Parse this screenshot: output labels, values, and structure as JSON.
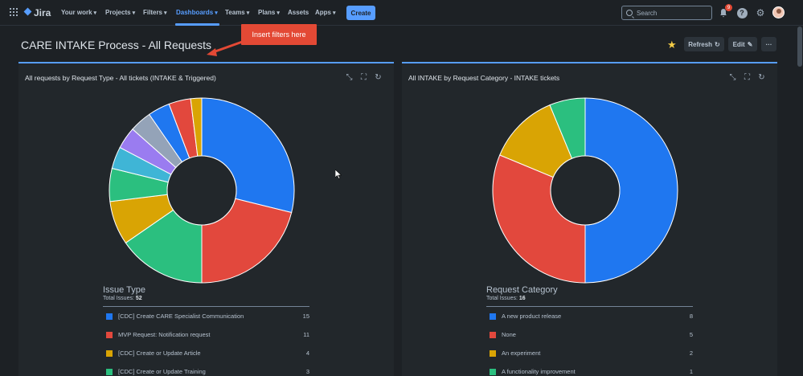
{
  "nav": {
    "logo": "Jira",
    "items": [
      {
        "label": "Your work",
        "chevron": true
      },
      {
        "label": "Projects",
        "chevron": true
      },
      {
        "label": "Filters",
        "chevron": true
      },
      {
        "label": "Dashboards",
        "chevron": true,
        "active": true
      },
      {
        "label": "Teams",
        "chevron": true
      },
      {
        "label": "Plans",
        "chevron": true
      },
      {
        "label": "Assets",
        "chevron": false
      },
      {
        "label": "Apps",
        "chevron": true
      }
    ],
    "create_label": "Create",
    "search_placeholder": "Search",
    "notification_count": "9",
    "icons": [
      "app-switcher-icon",
      "bell-icon",
      "help-icon",
      "gear-icon",
      "avatar"
    ]
  },
  "header": {
    "title": "CARE INTAKE Process - All Requests",
    "callout": "Insert filters here",
    "refresh_label": "Refresh",
    "edit_label": "Edit",
    "more_label": "···"
  },
  "gadgets": [
    {
      "title": "All requests by Request Type - All tickets (INTAKE & Triggered)",
      "legend_title": "Issue Type",
      "total_label": "Total Issues:",
      "total": "52",
      "legend_rows": [
        {
          "label": "[CDC] Create CARE Specialist Communication",
          "count": "15",
          "color": "#1f77f0"
        },
        {
          "label": "MVP Request: Notification request",
          "count": "11",
          "color": "#e2483d"
        },
        {
          "label": "[CDC] Create or Update Article",
          "count": "4",
          "color": "#d9a404"
        },
        {
          "label": "[CDC] Create or Update Training",
          "count": "3",
          "color": "#2bbf7f"
        }
      ]
    },
    {
      "title": "All INTAKE by Request Category - INTAKE tickets",
      "legend_title": "Request Category",
      "total_label": "Total Issues:",
      "total": "16",
      "legend_rows": [
        {
          "label": "A new product release",
          "count": "8",
          "color": "#1f77f0"
        },
        {
          "label": "None",
          "count": "5",
          "color": "#e2483d"
        },
        {
          "label": "An experiment",
          "count": "2",
          "color": "#d9a404"
        },
        {
          "label": "A functionality improvement",
          "count": "1",
          "color": "#2bbf7f"
        }
      ]
    }
  ],
  "chart_data": [
    {
      "type": "pie",
      "title": "All requests by Request Type - All tickets (INTAKE & Triggered)",
      "categories": [
        "[CDC] Create CARE Specialist Communication",
        "MVP Request: Notification request",
        "",
        "[CDC] Create or Update Article",
        "[CDC] Create or Update Training",
        "",
        "",
        "",
        "",
        "",
        ""
      ],
      "values": [
        15,
        11,
        8,
        4,
        3,
        2,
        2,
        2,
        2,
        2,
        1
      ],
      "colors": [
        "#1f77f0",
        "#e2483d",
        "#2bbf7f",
        "#d9a404",
        "#2bbf7f",
        "#3fb5d6",
        "#9a7cf0",
        "#94a3b8",
        "#1f77f0",
        "#e2483d",
        "#d9a404"
      ],
      "donut": true
    },
    {
      "type": "pie",
      "title": "All INTAKE by Request Category - INTAKE tickets",
      "categories": [
        "A new product release",
        "None",
        "An experiment",
        "A functionality improvement"
      ],
      "values": [
        8,
        5,
        2,
        1
      ],
      "colors": [
        "#1f77f0",
        "#e2483d",
        "#d9a404",
        "#2bbf7f"
      ],
      "donut": true
    }
  ]
}
